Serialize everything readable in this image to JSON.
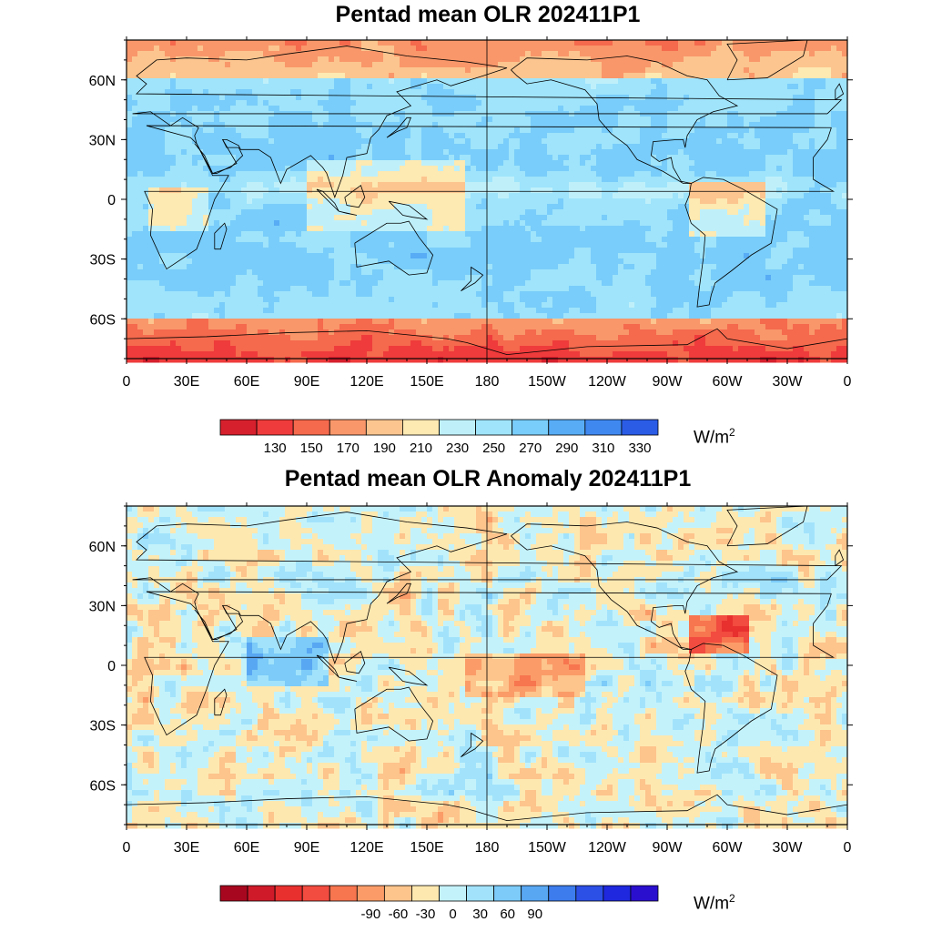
{
  "panels": [
    {
      "title": "Pentad mean OLR 202411P1",
      "kind": "total",
      "lat_labels": [
        "60N",
        "30N",
        "0",
        "30S",
        "60S"
      ],
      "lon_labels": [
        "0",
        "30E",
        "60E",
        "90E",
        "120E",
        "150E",
        "180",
        "150W",
        "120W",
        "90W",
        "60W",
        "30W",
        "0"
      ],
      "colorbar": {
        "colors": [
          "#d6202d",
          "#ef3b3b",
          "#f5694d",
          "#f9976a",
          "#fcc58f",
          "#fde9b2",
          "#bff0fa",
          "#9fe4fb",
          "#79cdfa",
          "#57acf5",
          "#3f88f0",
          "#2a5ce6"
        ],
        "tick_labels": [
          "130",
          "150",
          "170",
          "190",
          "210",
          "230",
          "250",
          "270",
          "290",
          "310",
          "330"
        ],
        "unit": "W/m",
        "unit_sup": "2"
      }
    },
    {
      "title": "Pentad mean OLR Anomaly 202411P1",
      "kind": "anomaly",
      "lat_labels": [
        "60N",
        "30N",
        "0",
        "30S",
        "60S"
      ],
      "lon_labels": [
        "0",
        "30E",
        "60E",
        "90E",
        "120E",
        "150E",
        "180",
        "150W",
        "120W",
        "90W",
        "60W",
        "30W",
        "0"
      ],
      "colorbar": {
        "colors": [
          "#a8081f",
          "#cf1a2a",
          "#e8302f",
          "#f24b3f",
          "#f7754f",
          "#fb9c68",
          "#fdc48c",
          "#fde8b0",
          "#c4f2fb",
          "#a2e3fb",
          "#7ccbf8",
          "#58a7f3",
          "#3c7ced",
          "#2c4fe6",
          "#1f28de",
          "#2a0fcf"
        ],
        "tick_labels": [
          "-90",
          "-60",
          "-30",
          "0",
          "30",
          "60",
          "90"
        ],
        "unit": "W/m",
        "unit_sup": "2"
      }
    }
  ]
}
